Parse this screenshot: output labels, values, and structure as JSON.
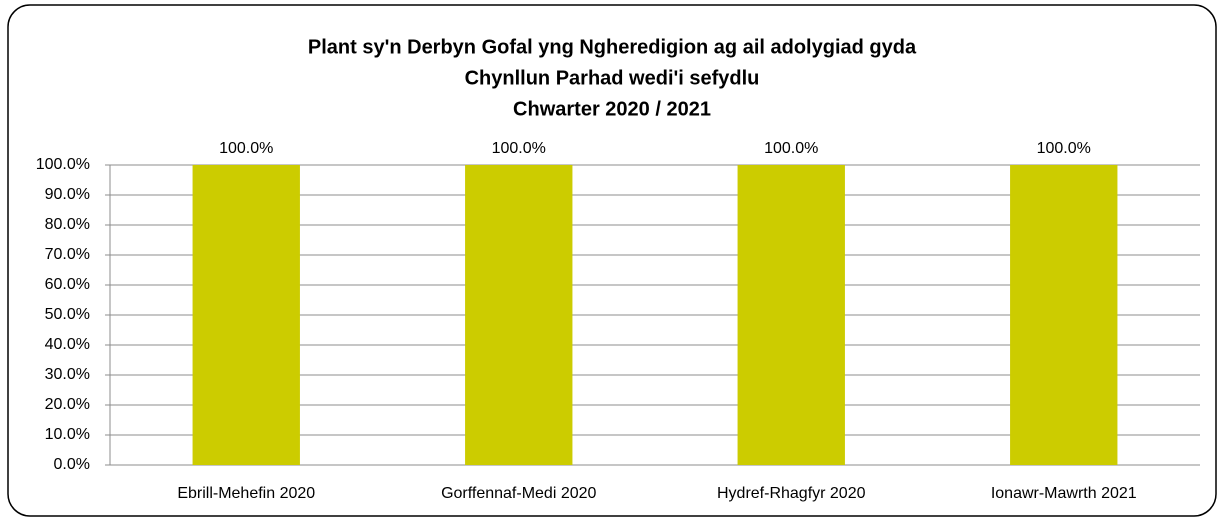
{
  "chart_data": {
    "type": "bar",
    "title": [
      "Plant sy'n Derbyn Gofal yng Ngheredigion ag ail adolygiad gyda",
      "Chynllun Parhad wedi'i sefydlu",
      "Chwarter  2020 / 2021"
    ],
    "categories": [
      "Ebrill-Mehefin 2020",
      "Gorffennaf-Medi 2020",
      "Hydref-Rhagfyr 2020",
      "Ionawr-Mawrth 2021"
    ],
    "values": [
      100,
      100,
      100,
      100
    ],
    "value_labels": [
      "100.0%",
      "100.0%",
      "100.0%",
      "100.0%"
    ],
    "color": "#cccc00",
    "ylim": [
      0,
      100
    ],
    "yticks": [
      {
        "value": 0,
        "label": "0.0%"
      },
      {
        "value": 10,
        "label": "10.0%"
      },
      {
        "value": 20,
        "label": "20.0%"
      },
      {
        "value": 30,
        "label": "30.0%"
      },
      {
        "value": 40,
        "label": "40.0%"
      },
      {
        "value": 50,
        "label": "50.0%"
      },
      {
        "value": 60,
        "label": "60.0%"
      },
      {
        "value": 70,
        "label": "70.0%"
      },
      {
        "value": 80,
        "label": "80.0%"
      },
      {
        "value": 90,
        "label": "90.0%"
      },
      {
        "value": 100,
        "label": "100.0%"
      }
    ],
    "grid": true
  }
}
